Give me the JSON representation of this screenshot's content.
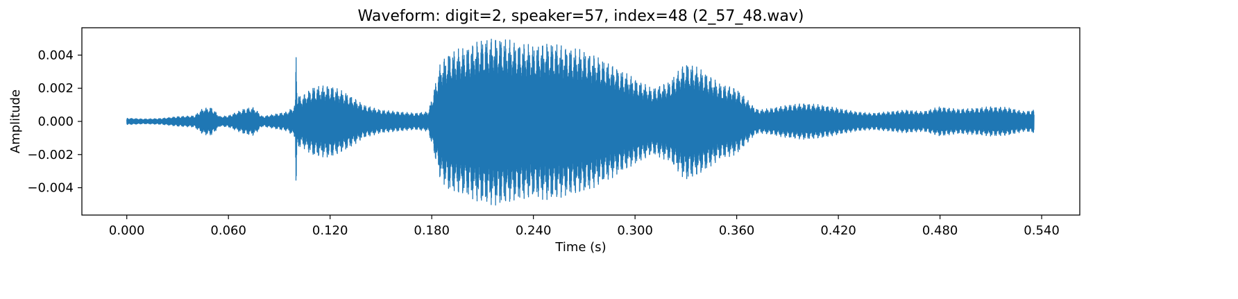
{
  "chart_data": {
    "type": "line",
    "title": "Waveform: digit=2, speaker=57, index=48  (2_57_48.wav)",
    "xlabel": "Time (s)",
    "ylabel": "Amplitude",
    "xlim": [
      -0.0265,
      0.5625
    ],
    "ylim": [
      -0.00565,
      0.00565
    ],
    "x_ticks": [
      0.0,
      0.06,
      0.12,
      0.18,
      0.24,
      0.3,
      0.36,
      0.42,
      0.48,
      0.54
    ],
    "x_tick_labels": [
      "0.000",
      "0.060",
      "0.120",
      "0.180",
      "0.240",
      "0.300",
      "0.360",
      "0.420",
      "0.480",
      "0.540"
    ],
    "y_ticks": [
      -0.004,
      -0.002,
      0.0,
      0.002,
      0.004
    ],
    "y_tick_labels": [
      "−0.004",
      "−0.002",
      "0.000",
      "0.002",
      "0.004"
    ],
    "grid": false,
    "legend": "none",
    "color": "#1f77b4",
    "series": [
      {
        "x": [
          0.0,
          0.01,
          0.02,
          0.03,
          0.04,
          0.045,
          0.05,
          0.055,
          0.06,
          0.07,
          0.075,
          0.08,
          0.09,
          0.095,
          0.0995,
          0.1,
          0.1005,
          0.103,
          0.11,
          0.12,
          0.13,
          0.14,
          0.15,
          0.16,
          0.17,
          0.178,
          0.18,
          0.185,
          0.19,
          0.2,
          0.21,
          0.22,
          0.23,
          0.24,
          0.25,
          0.26,
          0.27,
          0.28,
          0.29,
          0.3,
          0.31,
          0.32,
          0.33,
          0.34,
          0.35,
          0.36,
          0.37,
          0.373,
          0.38,
          0.39,
          0.4,
          0.41,
          0.42,
          0.43,
          0.44,
          0.45,
          0.46,
          0.47,
          0.48,
          0.49,
          0.5,
          0.51,
          0.52,
          0.53,
          0.5355
        ],
        "y_envelope": [
          0.0002,
          0.00015,
          0.00018,
          0.0003,
          0.00035,
          0.0008,
          0.00085,
          0.0003,
          0.00035,
          0.0008,
          0.00085,
          0.0003,
          0.0005,
          0.0006,
          0.001,
          0.0052,
          0.0017,
          0.0015,
          0.0021,
          0.0022,
          0.0017,
          0.001,
          0.0007,
          0.0006,
          0.0005,
          0.0006,
          0.0014,
          0.0035,
          0.0042,
          0.0045,
          0.005,
          0.0051,
          0.0048,
          0.0046,
          0.0048,
          0.0045,
          0.0043,
          0.0038,
          0.0032,
          0.0026,
          0.002,
          0.0024,
          0.0036,
          0.0031,
          0.0023,
          0.002,
          0.0009,
          0.0007,
          0.0008,
          0.001,
          0.0011,
          0.001,
          0.0008,
          0.0006,
          0.0005,
          0.0006,
          0.0007,
          0.0006,
          0.0009,
          0.00075,
          0.0008,
          0.0009,
          0.00085,
          0.0006,
          0.0007
        ]
      }
    ]
  }
}
